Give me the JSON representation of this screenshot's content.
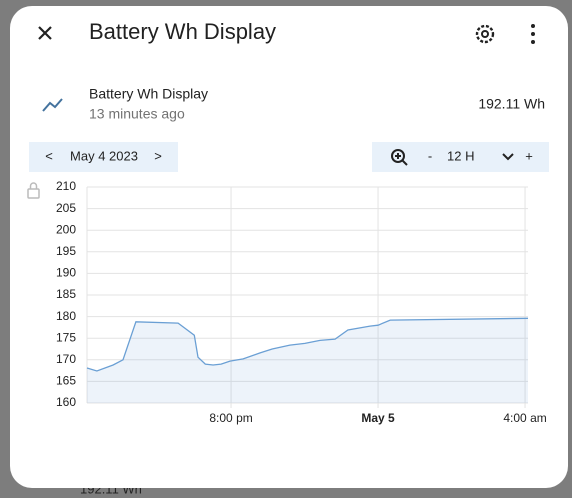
{
  "background": {
    "state": "192.11 Wh"
  },
  "header": {
    "title": "Battery Wh Display"
  },
  "entity": {
    "name": "Battery Wh Display",
    "last_changed": "13 minutes ago",
    "state": "192.11 Wh"
  },
  "date_nav": {
    "prev": "<",
    "date": "May 4 2023",
    "next": ">"
  },
  "zoom": {
    "minus": "-",
    "range": "12 H",
    "plus": "+"
  },
  "chart_data": {
    "type": "line",
    "x": [
      16.08,
      16.35,
      16.79,
      17.06,
      17.41,
      18.56,
      19.0,
      19.1,
      19.3,
      19.51,
      19.73,
      19.97,
      20.33,
      20.79,
      21.12,
      21.6,
      22.01,
      22.42,
      22.83,
      23.18,
      23.78,
      24.0,
      24.33,
      28.08
    ],
    "values": [
      168.1,
      167.4,
      168.8,
      170.0,
      178.8,
      178.5,
      175.7,
      170.6,
      169.0,
      168.8,
      169.0,
      169.7,
      170.2,
      171.6,
      172.5,
      173.4,
      173.8,
      174.5,
      174.8,
      176.9,
      177.8,
      178.0,
      179.2,
      179.6
    ],
    "color": "#6a9fd4",
    "xlim": [
      16.08,
      28.08
    ],
    "ylim": [
      160,
      210
    ],
    "xticks": [
      {
        "value": 20,
        "label": "8:00 pm"
      },
      {
        "value": 24,
        "label": "May 5"
      },
      {
        "value": 28,
        "label": "4:00 am"
      }
    ],
    "yticks": [
      160,
      165,
      170,
      175,
      180,
      185,
      190,
      195,
      200,
      205,
      210
    ],
    "grid": true
  }
}
